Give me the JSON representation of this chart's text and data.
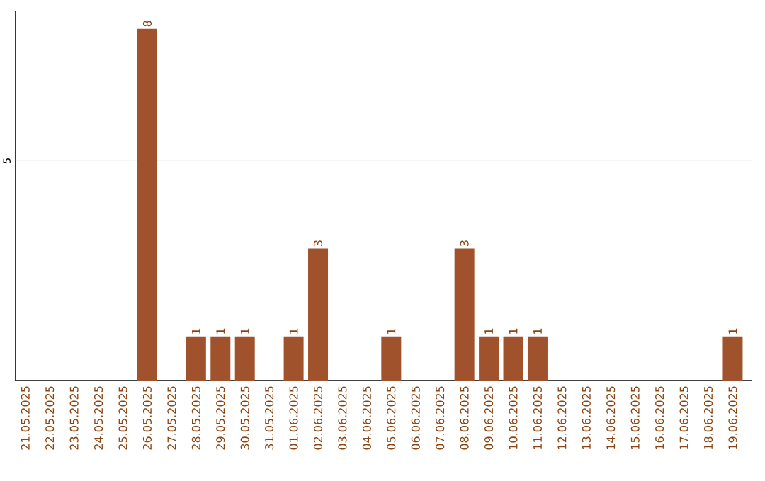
{
  "chart_data": {
    "type": "bar",
    "categories": [
      "21.05.2025",
      "22.05.2025",
      "23.05.2025",
      "24.05.2025",
      "25.05.2025",
      "26.05.2025",
      "27.05.2025",
      "28.05.2025",
      "29.05.2025",
      "30.05.2025",
      "31.05.2025",
      "01.06.2025",
      "02.06.2025",
      "03.06.2025",
      "04.06.2025",
      "05.06.2025",
      "06.06.2025",
      "07.06.2025",
      "08.06.2025",
      "09.06.2025",
      "10.06.2025",
      "11.06.2025",
      "12.06.2025",
      "13.06.2025",
      "14.06.2025",
      "15.06.2025",
      "16.06.2025",
      "17.06.2025",
      "18.06.2025",
      "19.06.2025"
    ],
    "values": [
      0,
      0,
      0,
      0,
      0,
      8,
      0,
      1,
      1,
      1,
      0,
      1,
      3,
      0,
      0,
      1,
      0,
      0,
      3,
      1,
      1,
      1,
      0,
      0,
      0,
      0,
      0,
      0,
      0,
      1
    ],
    "value_labels": [
      null,
      null,
      null,
      null,
      null,
      "8",
      null,
      "1",
      "1",
      "1",
      null,
      "1",
      "3",
      null,
      null,
      "1",
      null,
      null,
      "3",
      "1",
      "1",
      "1",
      null,
      null,
      null,
      null,
      null,
      null,
      null,
      "1"
    ],
    "color": "#a0522d",
    "ylim": [
      0,
      8.4
    ],
    "yticks": [
      5
    ],
    "grid": "y"
  }
}
